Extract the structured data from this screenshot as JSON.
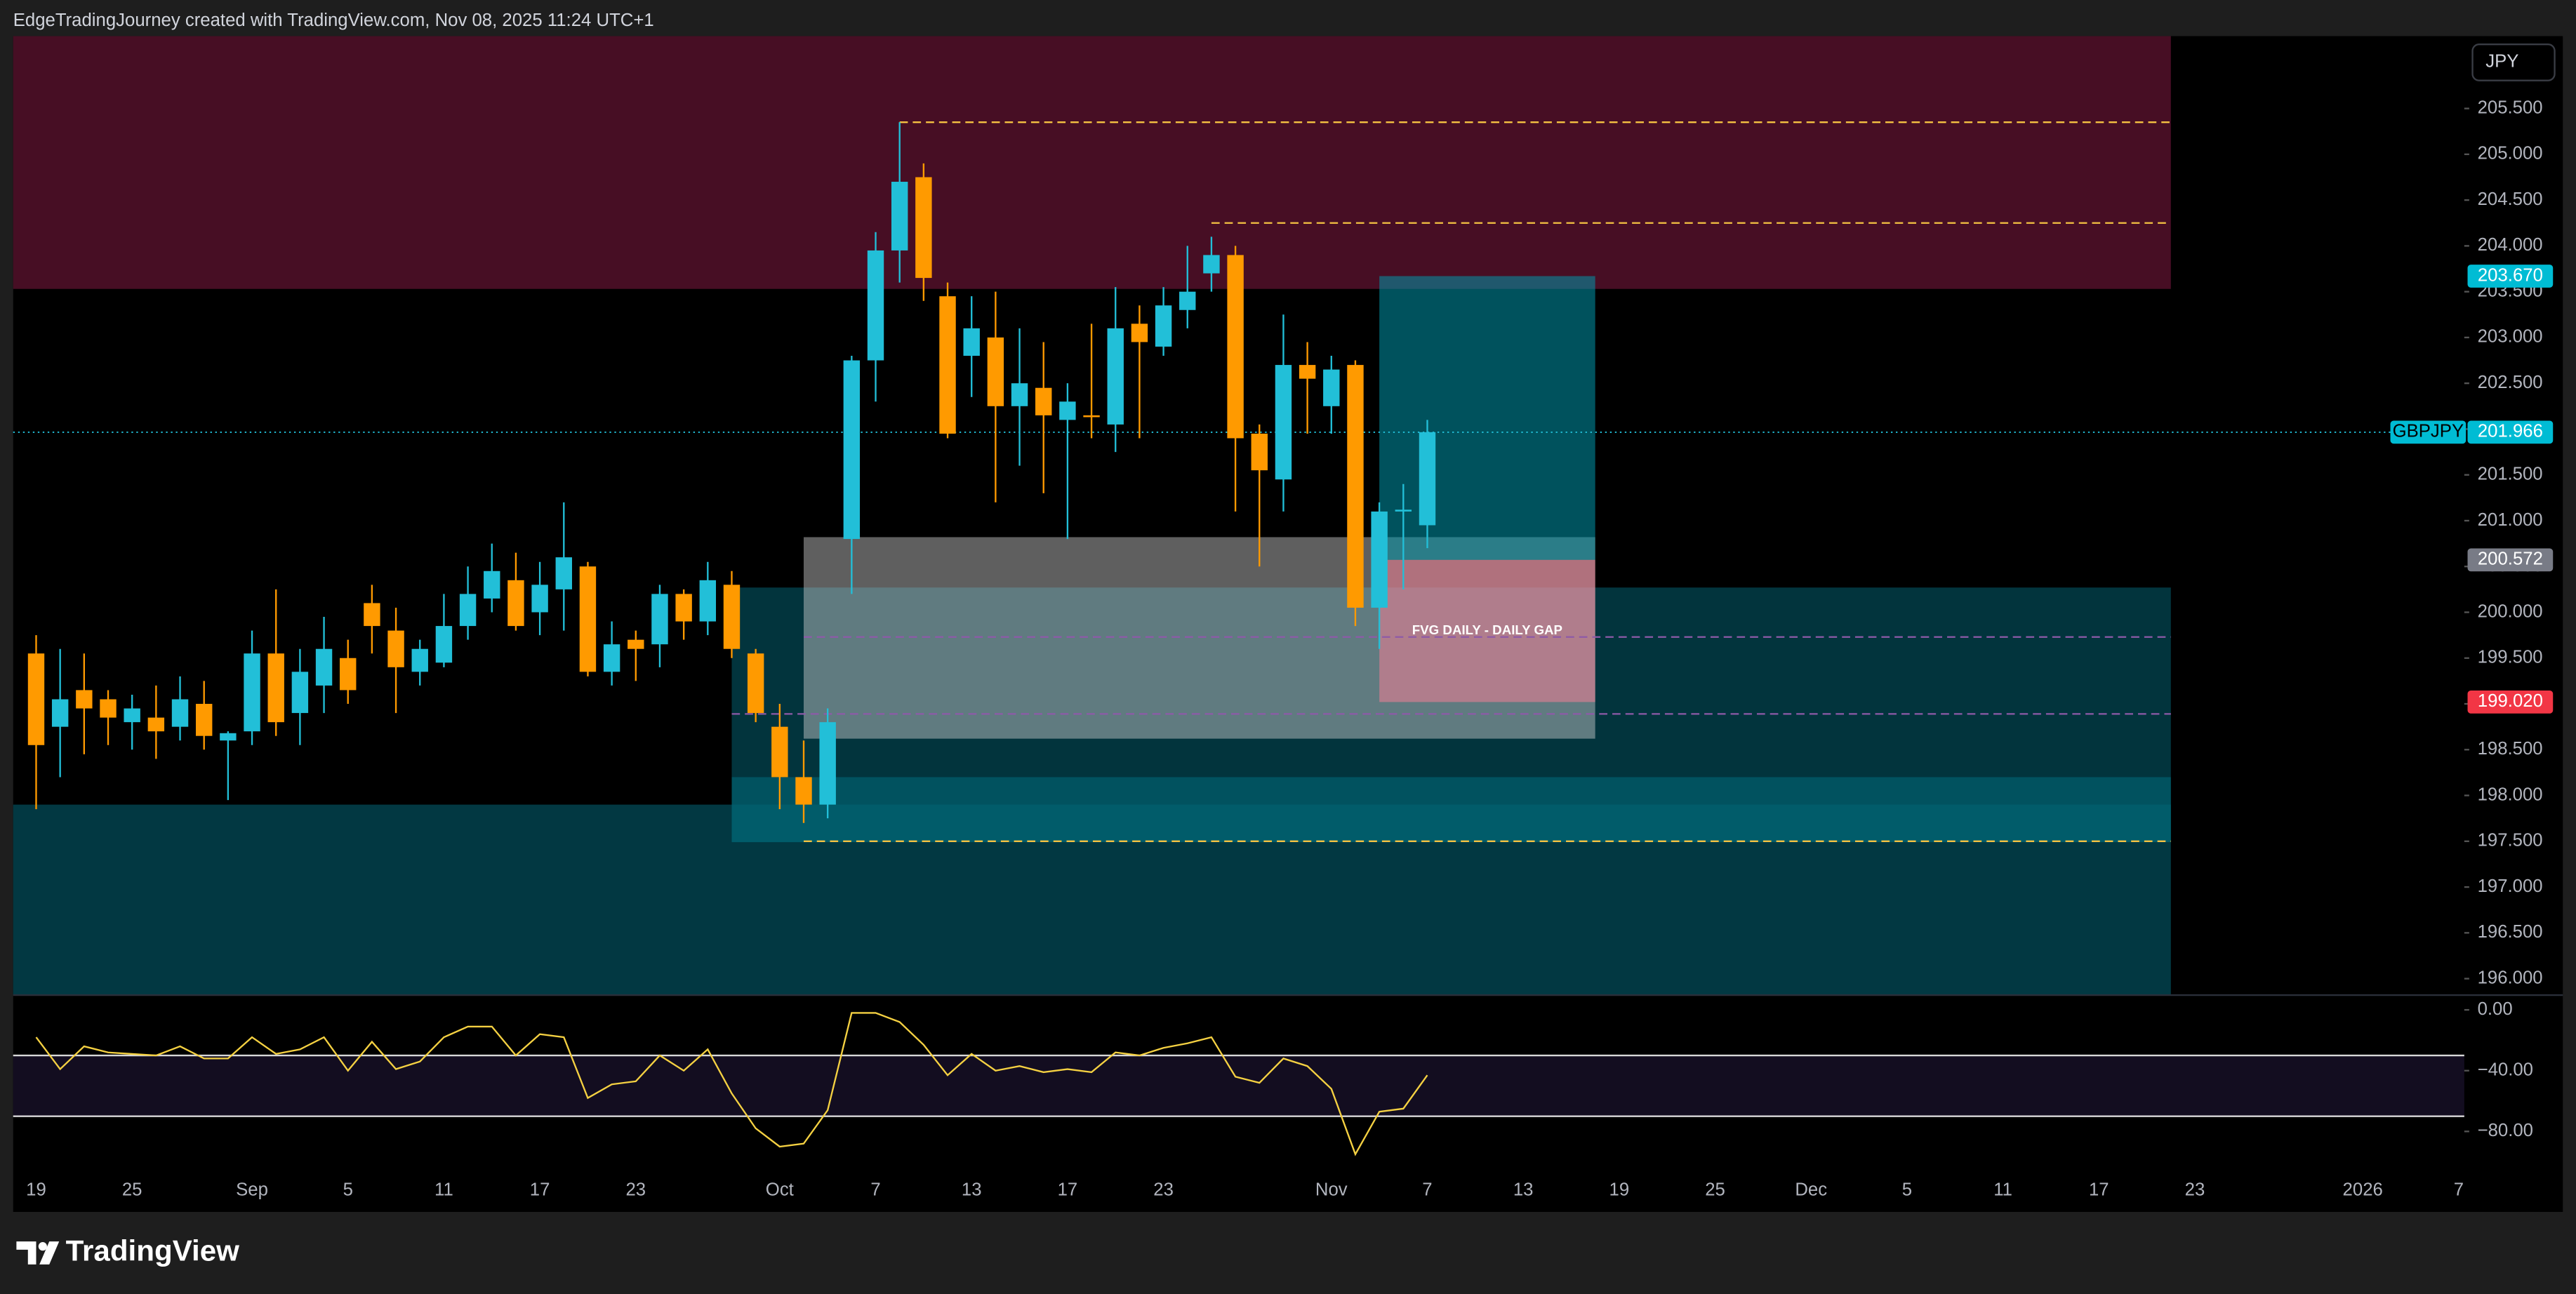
{
  "header": {
    "text": "EdgeTradingJourney created with TradingView.com, Nov 08, 2025 11:24 UTC+1"
  },
  "currency": "JPY",
  "brand": "TradingView",
  "chart_data": {
    "type": "candlestick",
    "symbol": "GBPJPY",
    "up_color": "#22bfd8",
    "down_color": "#ff9a00",
    "categories": [
      "19",
      null,
      null,
      null,
      "25",
      null,
      null,
      null,
      null,
      "Sep",
      null,
      null,
      null,
      "5",
      null,
      null,
      null,
      "11",
      null,
      null,
      null,
      "17",
      null,
      null,
      null,
      "23",
      null,
      null,
      null,
      null,
      null,
      "Oct",
      null,
      null,
      null,
      "7",
      null,
      null,
      null,
      "13",
      null,
      null,
      null,
      "17",
      null,
      null,
      null,
      "23",
      null,
      null,
      null,
      null,
      null,
      null,
      "Nov",
      null,
      null,
      null,
      "7",
      null,
      null,
      null,
      "13",
      null,
      null,
      null,
      "19",
      null,
      null,
      null,
      "25",
      null,
      null,
      null,
      "Dec",
      null,
      null,
      null,
      "5",
      null,
      null,
      null,
      "11",
      null,
      null,
      null,
      "17",
      null,
      null,
      null,
      "23",
      null,
      null,
      null,
      null,
      null,
      null,
      "2026",
      null,
      null,
      null,
      "7"
    ],
    "open": [
      199.55,
      198.75,
      199.15,
      199.05,
      198.8,
      198.85,
      198.75,
      199.0,
      198.6,
      198.7,
      199.55,
      198.9,
      199.2,
      199.5,
      200.1,
      199.8,
      199.35,
      199.45,
      199.85,
      200.15,
      200.35,
      200.0,
      200.25,
      200.5,
      199.35,
      199.7,
      199.65,
      200.2,
      199.9,
      200.3,
      199.55,
      198.75,
      198.2,
      197.9,
      200.8,
      202.75,
      203.95,
      204.75,
      203.45,
      202.8,
      203.0,
      202.25,
      202.45,
      202.1,
      202.15,
      202.05,
      203.15,
      202.9,
      203.3,
      203.7,
      203.9,
      201.95,
      201.45,
      202.7,
      202.25,
      202.7,
      200.05,
      201.1,
      200.95,
      null,
      null,
      null,
      null,
      null,
      null,
      null,
      null,
      null,
      null,
      null,
      null,
      null,
      null,
      null,
      null,
      null,
      null,
      null,
      null,
      null,
      null,
      null,
      null,
      null,
      null,
      null,
      null,
      null,
      null,
      null,
      null,
      null,
      null,
      null,
      null,
      null,
      null,
      null,
      null,
      null,
      null,
      null
    ],
    "high": [
      199.75,
      199.6,
      199.55,
      199.15,
      199.1,
      199.2,
      199.3,
      199.25,
      198.7,
      199.8,
      200.25,
      199.6,
      199.95,
      199.7,
      200.3,
      200.05,
      199.7,
      200.2,
      200.5,
      200.75,
      200.65,
      200.55,
      201.2,
      200.55,
      199.9,
      199.8,
      200.3,
      200.25,
      200.55,
      200.45,
      199.6,
      199.0,
      198.6,
      198.95,
      202.8,
      204.15,
      205.35,
      204.9,
      203.6,
      203.45,
      203.5,
      203.1,
      202.95,
      202.5,
      203.15,
      203.55,
      203.35,
      203.55,
      204.0,
      204.1,
      204.0,
      202.05,
      203.25,
      202.95,
      202.8,
      202.75,
      201.2,
      201.4,
      202.1,
      null,
      null,
      null,
      null,
      null,
      null,
      null,
      null,
      null,
      null,
      null,
      null,
      null,
      null,
      null,
      null,
      null,
      null,
      null,
      null,
      null,
      null,
      null,
      null,
      null,
      null,
      null,
      null,
      null,
      null,
      null,
      null,
      null,
      null,
      null,
      null,
      null,
      null,
      null,
      null,
      null,
      null,
      null
    ],
    "low": [
      197.85,
      198.2,
      198.45,
      198.55,
      198.5,
      198.4,
      198.6,
      198.5,
      197.95,
      198.55,
      198.65,
      198.55,
      198.9,
      199.0,
      199.55,
      198.9,
      199.2,
      199.4,
      199.7,
      200.0,
      199.8,
      199.75,
      199.8,
      199.3,
      199.2,
      199.25,
      199.4,
      199.7,
      199.75,
      199.5,
      198.8,
      197.85,
      197.7,
      197.75,
      200.2,
      202.3,
      203.6,
      203.4,
      201.9,
      202.35,
      201.2,
      201.6,
      201.3,
      200.8,
      201.9,
      201.75,
      201.9,
      202.8,
      203.1,
      203.5,
      201.1,
      200.5,
      201.1,
      201.95,
      201.95,
      199.85,
      199.6,
      200.25,
      200.7,
      null,
      null,
      null,
      null,
      null,
      null,
      null,
      null,
      null,
      null,
      null,
      null,
      null,
      null,
      null,
      null,
      null,
      null,
      null,
      null,
      null,
      null,
      null,
      null,
      null,
      null,
      null,
      null,
      null,
      null,
      null,
      null,
      null,
      null,
      null,
      null,
      null,
      null,
      null,
      null,
      null,
      null,
      null
    ],
    "close": [
      198.55,
      199.05,
      198.95,
      198.85,
      198.95,
      198.7,
      199.05,
      198.65,
      198.68,
      199.55,
      198.8,
      199.35,
      199.6,
      199.15,
      199.85,
      199.4,
      199.6,
      199.85,
      200.2,
      200.45,
      199.85,
      200.3,
      200.6,
      199.35,
      199.65,
      199.6,
      200.2,
      199.9,
      200.35,
      199.6,
      198.9,
      198.2,
      197.9,
      198.8,
      202.75,
      203.95,
      204.7,
      203.65,
      201.95,
      203.1,
      202.25,
      202.5,
      202.15,
      202.3,
      202.13,
      203.1,
      202.95,
      203.35,
      203.5,
      203.9,
      201.9,
      201.55,
      202.7,
      202.55,
      202.65,
      200.05,
      201.1,
      201.12,
      201.966,
      null,
      null,
      null,
      null,
      null,
      null,
      null,
      null,
      null,
      null,
      null,
      null,
      null,
      null,
      null,
      null,
      null,
      null,
      null,
      null,
      null,
      null,
      null,
      null,
      null,
      null,
      null,
      null,
      null,
      null,
      null,
      null,
      null,
      null,
      null,
      null,
      null,
      null,
      null,
      null,
      null,
      null,
      null
    ],
    "ylim": [
      195.82,
      206.29
    ],
    "yticks": [
      {
        "value": 196,
        "label": "196.000"
      },
      {
        "value": 196.5,
        "label": "196.500"
      },
      {
        "value": 197,
        "label": "197.000"
      },
      {
        "value": 197.5,
        "label": "197.500"
      },
      {
        "value": 198,
        "label": "198.000"
      },
      {
        "value": 198.5,
        "label": "198.500"
      },
      {
        "value": 199,
        "label": "199.000"
      },
      {
        "value": 199.5,
        "label": "199.500"
      },
      {
        "value": 200,
        "label": "200.000"
      },
      {
        "value": 200.5,
        "label": "200.500"
      },
      {
        "value": 201,
        "label": "201.000"
      },
      {
        "value": 201.5,
        "label": "201.500"
      },
      {
        "value": 202,
        "label": "202.000"
      },
      {
        "value": 202.5,
        "label": "202.500"
      },
      {
        "value": 203,
        "label": "203.000"
      },
      {
        "value": 203.5,
        "label": "203.500"
      },
      {
        "value": 204,
        "label": "204.000"
      },
      {
        "value": 204.5,
        "label": "204.500"
      },
      {
        "value": 205,
        "label": "205.000"
      },
      {
        "value": 205.5,
        "label": "205.500"
      }
    ],
    "zones": [
      {
        "end": 89,
        "top": 206.29,
        "bottom": 203.53,
        "color": "#470e24"
      },
      {
        "end": 89,
        "top": 197.9,
        "bottom": 195.82,
        "color": "#023842"
      },
      {
        "start": 29,
        "end": 89,
        "top": 200.27,
        "bottom": 197.49,
        "color": "rgba(3,70,82,0.75)"
      },
      {
        "start": 29,
        "end": 89,
        "top": 198.2,
        "bottom": 197.49,
        "color": "rgba(0,140,160,0.35)"
      },
      {
        "start": 32,
        "end": 65,
        "top": 200.82,
        "bottom": 198.62,
        "color": "rgba(210,210,210,0.45)"
      },
      {
        "start": 56,
        "end": 65,
        "top": 203.67,
        "bottom": 200.572,
        "color": "rgba(0,150,170,0.55)"
      },
      {
        "start": 56,
        "end": 65,
        "top": 200.572,
        "bottom": 199.02,
        "color": "rgba(242,128,150,0.55)",
        "label": "FVG DAILY - DAILY GAP"
      }
    ],
    "lines": [
      {
        "price": 205.35,
        "start": 36,
        "end": 89,
        "color": "#f5c242"
      },
      {
        "price": 204.25,
        "start": 49,
        "end": 89,
        "color": "#f5c242"
      },
      {
        "price": 197.5,
        "start": 32,
        "end": 89,
        "color": "#f5c242"
      },
      {
        "price": 199.73,
        "start": 32,
        "end": 89,
        "color": "#8e5aa8"
      },
      {
        "price": 198.89,
        "start": 29,
        "end": 89,
        "color": "#8e5aa8"
      }
    ],
    "price_labels": [
      {
        "value": 203.67,
        "label": "203.670",
        "color": "#00bcd4"
      },
      {
        "value": 201.966,
        "label": "201.966",
        "color": "#00bcd4"
      },
      {
        "value": 200.572,
        "label": "200.572",
        "color": "#787b86"
      },
      {
        "value": 199.02,
        "label": "199.020",
        "color": "#f23645"
      }
    ],
    "oscillator": {
      "type": "line",
      "color": "#f5d142",
      "values": [
        -18,
        -39,
        -24,
        -28,
        -29,
        -30,
        -24,
        -32,
        -32,
        -18,
        -29,
        -26,
        -18,
        -40,
        -21,
        -39,
        -34,
        -18,
        -11,
        -11,
        -30,
        -16,
        -18,
        -58,
        -49,
        -47,
        -30,
        -40,
        -26,
        -55,
        -78,
        -90,
        -88,
        -66,
        -2,
        -2,
        -8,
        -23,
        -43,
        -29,
        -40,
        -37,
        -41,
        -39,
        -41,
        -28,
        -30,
        -25,
        -22,
        -18,
        -44,
        -48,
        -32,
        -37,
        -52,
        -95,
        -67,
        -65,
        -43,
        null,
        null,
        null,
        null,
        null,
        null,
        null,
        null,
        null,
        null,
        null,
        null,
        null,
        null,
        null,
        null,
        null,
        null,
        null,
        null,
        null,
        null,
        null,
        null,
        null,
        null,
        null,
        null,
        null,
        null,
        null,
        null,
        null,
        null,
        null,
        null,
        null,
        null,
        null,
        null,
        null,
        null,
        null
      ],
      "ylim": [
        -102.7,
        9.7
      ],
      "yticks": [
        {
          "value": 0,
          "label": "0.00"
        },
        {
          "value": -40,
          "label": "−40.00"
        },
        {
          "value": -80,
          "label": "−80.00"
        }
      ],
      "levels": [
        -30,
        -70
      ]
    }
  }
}
